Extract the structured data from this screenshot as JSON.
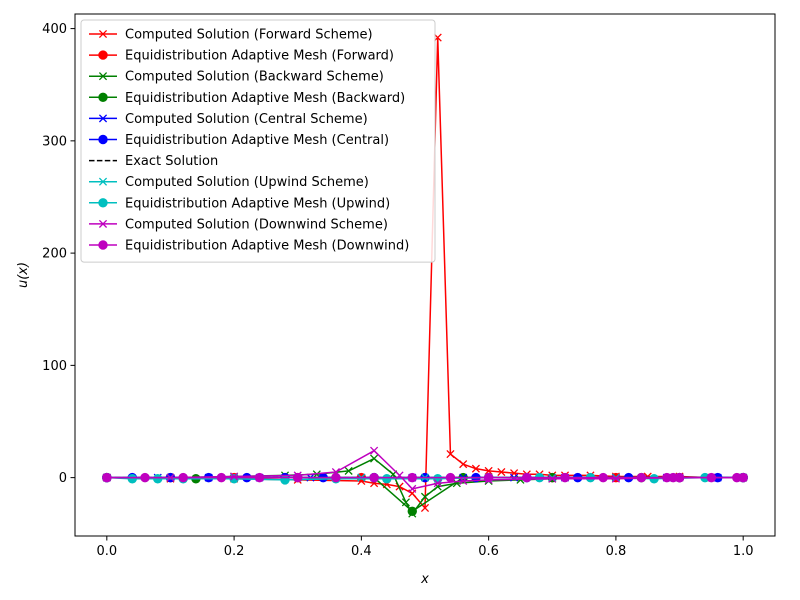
{
  "chart_data": {
    "type": "line",
    "title": "",
    "xlabel": "x",
    "ylabel": "u(x)",
    "xlim": [
      -0.05,
      1.05
    ],
    "ylim": [
      -52,
      413
    ],
    "xticks": [
      0.0,
      0.2,
      0.4,
      0.6,
      0.8,
      1.0
    ],
    "xtick_labels": [
      "0.0",
      "0.2",
      "0.4",
      "0.6",
      "0.8",
      "1.0"
    ],
    "yticks": [
      0,
      100,
      200,
      300,
      400
    ],
    "ytick_labels": [
      "0",
      "100",
      "200",
      "300",
      "400"
    ],
    "legend_position": "upper left",
    "series": [
      {
        "name": "Computed Solution (Forward Scheme)",
        "color": "#ff0000",
        "marker": "x",
        "linestyle": "solid",
        "x": [
          0.0,
          0.1,
          0.2,
          0.3,
          0.4,
          0.42,
          0.44,
          0.46,
          0.48,
          0.5,
          0.52,
          0.54,
          0.56,
          0.58,
          0.6,
          0.62,
          0.64,
          0.66,
          0.68,
          0.7,
          0.72,
          0.76,
          0.8,
          0.85,
          0.9,
          0.95,
          1.0
        ],
        "y": [
          0,
          -1,
          -1,
          -2,
          -3,
          -5,
          -6,
          -8,
          -14,
          -27,
          392,
          21,
          12,
          8,
          6,
          5,
          4,
          3,
          3,
          2,
          2,
          2,
          1,
          1,
          1,
          0,
          0
        ]
      },
      {
        "name": "Equidistribution Adaptive Mesh (Forward)",
        "color": "#ff0000",
        "marker": "o",
        "linestyle": "solid",
        "x": [
          0.0,
          0.1,
          0.2,
          0.3,
          0.4,
          0.5,
          0.6,
          0.7,
          0.8,
          0.9,
          1.0
        ],
        "y": [
          0,
          0,
          0,
          0,
          0,
          0,
          0,
          0,
          0,
          0,
          0
        ]
      },
      {
        "name": "Computed Solution (Backward Scheme)",
        "color": "#008000",
        "marker": "x",
        "linestyle": "solid",
        "x": [
          0.0,
          0.1,
          0.2,
          0.28,
          0.33,
          0.38,
          0.42,
          0.45,
          0.47,
          0.48,
          0.5,
          0.52,
          0.55,
          0.6,
          0.65,
          0.7,
          0.8,
          0.9,
          1.0
        ],
        "y": [
          0,
          0,
          1,
          2,
          3,
          6,
          17,
          3,
          -22,
          -32,
          -17,
          -8,
          -5,
          -3,
          -2,
          -1,
          0,
          0,
          0
        ]
      },
      {
        "name": "Equidistribution Adaptive Mesh (Backward)",
        "color": "#008000",
        "marker": "o",
        "linestyle": "solid",
        "x": [
          0.0,
          0.14,
          0.28,
          0.42,
          0.48,
          0.56,
          0.7,
          0.84,
          1.0
        ],
        "y": [
          0,
          -1,
          0,
          0,
          -30,
          0,
          0,
          0,
          0
        ]
      },
      {
        "name": "Computed Solution (Central Scheme)",
        "color": "#0000ff",
        "marker": "x",
        "linestyle": "solid",
        "x": [
          0.0,
          0.08,
          0.16,
          0.24,
          0.32,
          0.4,
          0.48,
          0.56,
          0.64,
          0.72,
          0.8,
          0.88,
          0.96,
          1.0
        ],
        "y": [
          0,
          0,
          0,
          0,
          0,
          0,
          0,
          0,
          0,
          0,
          0,
          0,
          0,
          0
        ]
      },
      {
        "name": "Equidistribution Adaptive Mesh (Central)",
        "color": "#0000ff",
        "marker": "o",
        "linestyle": "solid",
        "x": [
          0.0,
          0.04,
          0.1,
          0.16,
          0.22,
          0.28,
          0.34,
          0.42,
          0.5,
          0.58,
          0.66,
          0.74,
          0.82,
          0.9,
          0.96,
          1.0
        ],
        "y": [
          0,
          0,
          0,
          0,
          0,
          0,
          0,
          0,
          0,
          0,
          0,
          0,
          0,
          0,
          0,
          0
        ]
      },
      {
        "name": "Exact Solution",
        "color": "#000000",
        "marker": "none",
        "linestyle": "dashed",
        "x": [
          0.0,
          0.25,
          0.5,
          0.75,
          1.0
        ],
        "y": [
          0,
          0,
          0,
          0,
          0
        ]
      },
      {
        "name": "Computed Solution (Upwind Scheme)",
        "color": "#00bfbf",
        "marker": "x",
        "linestyle": "solid",
        "x": [
          0.0,
          0.1,
          0.2,
          0.3,
          0.4,
          0.5,
          0.6,
          0.7,
          0.8,
          0.9,
          1.0
        ],
        "y": [
          0,
          0,
          0,
          0,
          0,
          0,
          0,
          0,
          0,
          0,
          0
        ]
      },
      {
        "name": "Equidistribution Adaptive Mesh (Upwind)",
        "color": "#00bfbf",
        "marker": "o",
        "linestyle": "solid",
        "x": [
          0.0,
          0.04,
          0.08,
          0.12,
          0.2,
          0.28,
          0.36,
          0.44,
          0.52,
          0.6,
          0.68,
          0.76,
          0.86,
          0.94,
          1.0
        ],
        "y": [
          0,
          -1,
          -1,
          -1,
          -1,
          -2,
          -1,
          -1,
          -1,
          0,
          0,
          0,
          -1,
          0,
          0
        ]
      },
      {
        "name": "Computed Solution (Downwind Scheme)",
        "color": "#bf00bf",
        "marker": "x",
        "linestyle": "solid",
        "x": [
          0.0,
          0.1,
          0.2,
          0.3,
          0.36,
          0.42,
          0.46,
          0.48,
          0.52,
          0.56,
          0.6,
          0.7,
          0.8,
          0.9,
          1.0
        ],
        "y": [
          0,
          0,
          1,
          2,
          5,
          24,
          2,
          -10,
          -5,
          -3,
          -2,
          -1,
          -1,
          0,
          0
        ]
      },
      {
        "name": "Equidistribution Adaptive Mesh (Downwind)",
        "color": "#bf00bf",
        "marker": "o",
        "linestyle": "solid",
        "x": [
          0.0,
          0.06,
          0.12,
          0.18,
          0.24,
          0.3,
          0.36,
          0.42,
          0.48,
          0.54,
          0.6,
          0.66,
          0.72,
          0.78,
          0.84,
          0.88,
          0.89,
          0.9,
          0.95,
          0.99,
          1.0
        ],
        "y": [
          0,
          0,
          0,
          0,
          0,
          0,
          0,
          0,
          0,
          0,
          0,
          0,
          0,
          0,
          0,
          0,
          0,
          0,
          0,
          0,
          0
        ]
      }
    ]
  }
}
